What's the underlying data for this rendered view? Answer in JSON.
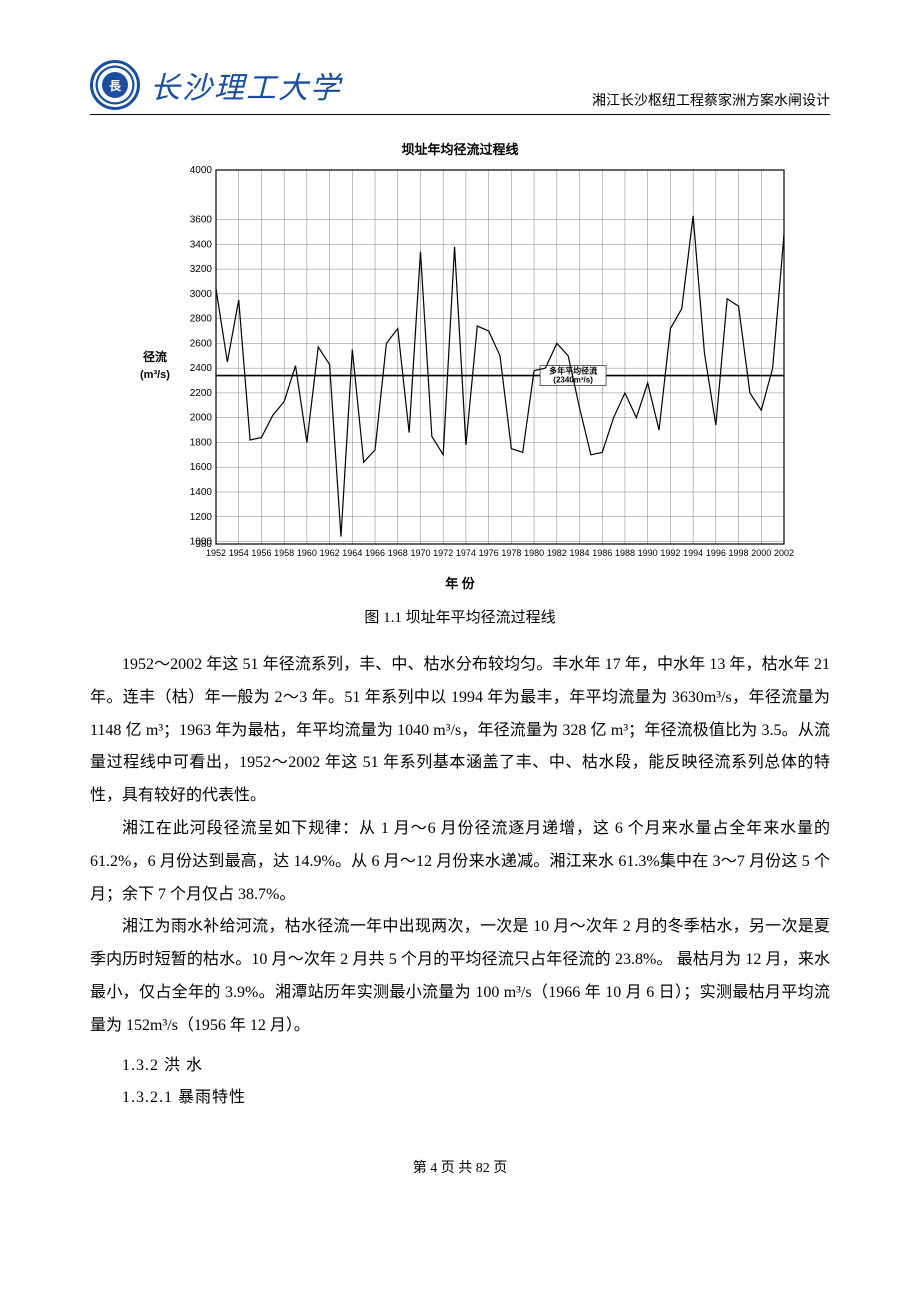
{
  "header": {
    "university": "长沙理工大学",
    "doc_title": "湘江长沙枢纽工程蔡家洲方案水闸设计"
  },
  "chart": {
    "type": "line",
    "title": "坝址年均径流过程线",
    "caption": "图 1.1 坝址年平均径流过程线",
    "ylabel_line1": "径流",
    "ylabel_line2": "(m³/s)",
    "xlabel": "年 份",
    "xlim": [
      1952,
      2002
    ],
    "ylim": [
      980,
      4000
    ],
    "yticks": [
      980,
      1000,
      1200,
      1400,
      1600,
      1800,
      2000,
      2200,
      2400,
      2600,
      2800,
      3000,
      3200,
      3400,
      3600,
      4000
    ],
    "xticks": [
      1952,
      1954,
      1956,
      1958,
      1960,
      1962,
      1964,
      1966,
      1968,
      1970,
      1972,
      1974,
      1976,
      1978,
      1980,
      1982,
      1984,
      1986,
      1988,
      1990,
      1992,
      1994,
      1996,
      1998,
      2000,
      2002
    ],
    "grid_color": "#808080",
    "line_color": "#000000",
    "background_color": "#ffffff",
    "line_width": 1.2,
    "avg_line": {
      "value": 2340,
      "label": "多年平均径流",
      "sublabel": "(2340m³/s)"
    },
    "series": [
      {
        "x": 1952,
        "y": 3040
      },
      {
        "x": 1953,
        "y": 2450
      },
      {
        "x": 1954,
        "y": 2950
      },
      {
        "x": 1955,
        "y": 1820
      },
      {
        "x": 1956,
        "y": 1840
      },
      {
        "x": 1957,
        "y": 2020
      },
      {
        "x": 1958,
        "y": 2130
      },
      {
        "x": 1959,
        "y": 2420
      },
      {
        "x": 1960,
        "y": 1800
      },
      {
        "x": 1961,
        "y": 2570
      },
      {
        "x": 1962,
        "y": 2430
      },
      {
        "x": 1963,
        "y": 1040
      },
      {
        "x": 1964,
        "y": 2550
      },
      {
        "x": 1965,
        "y": 1640
      },
      {
        "x": 1966,
        "y": 1740
      },
      {
        "x": 1967,
        "y": 2600
      },
      {
        "x": 1968,
        "y": 2720
      },
      {
        "x": 1969,
        "y": 1880
      },
      {
        "x": 1970,
        "y": 3340
      },
      {
        "x": 1971,
        "y": 1850
      },
      {
        "x": 1972,
        "y": 1700
      },
      {
        "x": 1973,
        "y": 3380
      },
      {
        "x": 1974,
        "y": 1780
      },
      {
        "x": 1975,
        "y": 2740
      },
      {
        "x": 1976,
        "y": 2700
      },
      {
        "x": 1977,
        "y": 2500
      },
      {
        "x": 1978,
        "y": 1750
      },
      {
        "x": 1979,
        "y": 1720
      },
      {
        "x": 1980,
        "y": 2380
      },
      {
        "x": 1981,
        "y": 2400
      },
      {
        "x": 1982,
        "y": 2600
      },
      {
        "x": 1983,
        "y": 2500
      },
      {
        "x": 1984,
        "y": 2080
      },
      {
        "x": 1985,
        "y": 1700
      },
      {
        "x": 1986,
        "y": 1720
      },
      {
        "x": 1987,
        "y": 2000
      },
      {
        "x": 1988,
        "y": 2200
      },
      {
        "x": 1989,
        "y": 2000
      },
      {
        "x": 1990,
        "y": 2280
      },
      {
        "x": 1991,
        "y": 1900
      },
      {
        "x": 1992,
        "y": 2720
      },
      {
        "x": 1993,
        "y": 2880
      },
      {
        "x": 1994,
        "y": 3630
      },
      {
        "x": 1995,
        "y": 2520
      },
      {
        "x": 1996,
        "y": 1940
      },
      {
        "x": 1997,
        "y": 2960
      },
      {
        "x": 1998,
        "y": 2900
      },
      {
        "x": 1999,
        "y": 2200
      },
      {
        "x": 2000,
        "y": 2060
      },
      {
        "x": 2001,
        "y": 2400
      },
      {
        "x": 2002,
        "y": 3480
      }
    ]
  },
  "paragraphs": {
    "p1": "1952～2002 年这 51 年径流系列，丰、中、枯水分布较均匀。丰水年 17 年，中水年 13 年，枯水年 21 年。连丰（枯）年一般为 2～3 年。51 年系列中以 1994 年为最丰，年平均流量为 3630m³/s，年径流量为 1148 亿 m³；1963 年为最枯，年平均流量为 1040 m³/s，年径流量为 328 亿 m³；年径流极值比为 3.5。从流量过程线中可看出，1952～2002 年这 51 年系列基本涵盖了丰、中、枯水段，能反映径流系列总体的特性，具有较好的代表性。",
    "p2": "湘江在此河段径流呈如下规律：从 1 月～6 月份径流逐月递增，这 6 个月来水量占全年来水量的 61.2%，6 月份达到最高，达 14.9%。从 6 月～12 月份来水递减。湘江来水 61.3%集中在 3～7 月份这 5 个月；余下 7 个月仅占 38.7%。",
    "p3": "湘江为雨水补给河流，枯水径流一年中出现两次，一次是 10 月～次年 2 月的冬季枯水，另一次是夏季内历时短暂的枯水。10 月～次年 2 月共 5 个月的平均径流只占年径流的 23.8%。 最枯月为 12 月，来水最小，仅占全年的 3.9%。湘潭站历年实测最小流量为 100 m³/s（1966 年 10 月 6 日）；实测最枯月平均流量为 152m³/s（1956 年 12 月）。"
  },
  "headings": {
    "h1": "1.3.2 洪  水",
    "h2": "1.3.2.1 暴雨特性"
  },
  "footer": {
    "text": "第 4 页 共 82 页"
  }
}
